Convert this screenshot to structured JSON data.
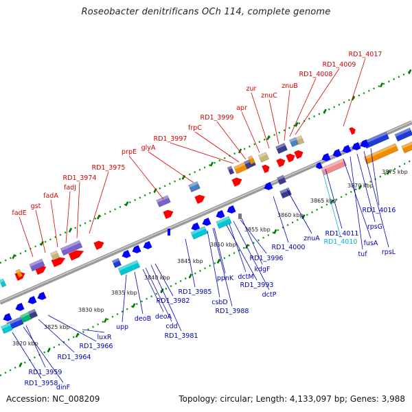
{
  "title": "Roseobacter denitrificans OCh 114, complete genome",
  "footer": {
    "accession": "Accession: NC_008209",
    "summary": "Topology: circular; Length: 4,133,097 bp; Genes: 3,988"
  },
  "colors": {
    "label_forward": "#d40000",
    "label_reverse": "#0000b4",
    "label_highlight": "#00b4dc",
    "backbone": "#999999",
    "tick": "#007800",
    "forward_arrow": "#ff0000",
    "reverse_arrow": "#0000ff",
    "feature_blue": "#1e3cd2",
    "feature_orange": "#f08c00",
    "feature_pink": "#ee8c8c",
    "feature_purple": "#7860c8",
    "feature_cyan": "#00c8d2",
    "feature_steel": "#4a7fc0",
    "feature_khaki": "#c8b476",
    "feature_navy": "#3c3c8c",
    "feature_green": "#00b46e"
  },
  "scale_labels": [
    "3820 kbp",
    "3825 kbp",
    "3830 kbp",
    "3835 kbp",
    "3840 kbp",
    "3845 kbp",
    "3850 kbp",
    "3855 kbp",
    "3860 kbp",
    "3865 kbp",
    "3870 kbp",
    "3875 kbp"
  ],
  "forward_genes": [
    "fadE",
    "gst",
    "fadA",
    "fadJ",
    "RD1_3974",
    "RD1_3975",
    "prpE",
    "glyA",
    "RD1_3997",
    "frpC",
    "RD1_3999",
    "apr",
    "zur",
    "znuC",
    "znuB",
    "RD1_4008",
    "RD1_4009",
    "RD1_4017"
  ],
  "reverse_genes": [
    "RD1_3958",
    "dinF",
    "RD1_3959",
    "RD1_3964",
    "RD1_3966",
    "luxR",
    "upp",
    "deoB",
    "deoA",
    "cdd",
    "RD1_3981",
    "RD1_3982",
    "RD1_3985",
    "csbD",
    "RD1_3988",
    "ppnK",
    "RD1_3993",
    "dctM",
    "dctP",
    "kdgF",
    "RD1_3996",
    "RD1_4000",
    "znuA",
    "RD1_4011",
    "RD1_4010",
    "fusA",
    "tuf",
    "rpsG",
    "rpsL",
    "RD1_4016"
  ]
}
